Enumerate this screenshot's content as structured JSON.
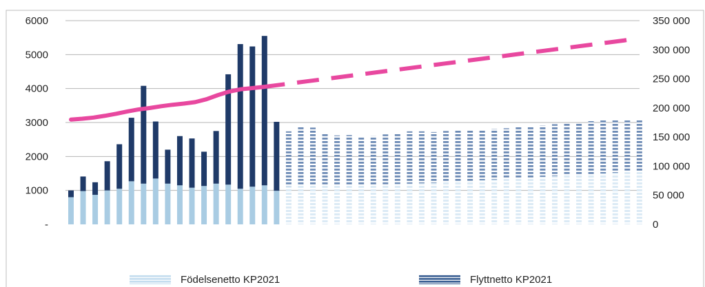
{
  "chart_data": {
    "type": "bar",
    "subtype": "stacked-bar-with-line-dual-axis",
    "title": "",
    "xlabel": "",
    "ylabel": "",
    "y_left": {
      "lim": [
        0,
        6000
      ],
      "ticks": [
        0,
        1000,
        2000,
        3000,
        4000,
        5000,
        6000
      ],
      "tick_labels": [
        "-",
        "1000",
        "2000",
        "3000",
        "4000",
        "5000",
        "6000"
      ]
    },
    "y_right": {
      "lim": [
        0,
        350000
      ],
      "ticks": [
        0,
        50000,
        100000,
        150000,
        200000,
        250000,
        300000,
        350000
      ],
      "tick_labels": [
        "0",
        "50 000",
        "100 000",
        "150 000",
        "200 000",
        "250 000",
        "300 000",
        "350 000"
      ]
    },
    "grid": true,
    "legend_position": "bottom",
    "legend": [
      {
        "label": "Födelsenetto KP2021",
        "color": "#a9cce3"
      },
      {
        "label": "Flyttnetto KP2021",
        "color": "#1f3a68"
      }
    ],
    "historical_count": 18,
    "series": [
      {
        "name": "Födelsenetto KP2021",
        "axis": "left",
        "color": "#a9cce3",
        "values": [
          800,
          980,
          870,
          1000,
          1050,
          1270,
          1200,
          1350,
          1200,
          1150,
          1080,
          1130,
          1200,
          1170,
          1050,
          1110,
          1150,
          990,
          1130,
          1140,
          1150,
          1150,
          1150,
          1150,
          1160,
          1170,
          1180,
          1190,
          1200,
          1210,
          1220,
          1240,
          1260,
          1280,
          1300,
          1320,
          1340,
          1360,
          1380,
          1400,
          1420,
          1440,
          1460,
          1480,
          1500,
          1520,
          1540,
          1560
        ]
      },
      {
        "name": "Flyttnetto KP2021",
        "axis": "left",
        "color": "#1f3a68",
        "values": [
          200,
          430,
          370,
          860,
          1310,
          1870,
          2880,
          1680,
          1000,
          1450,
          1450,
          1010,
          1550,
          3250,
          4260,
          4130,
          4400,
          2030,
          1610,
          1730,
          1700,
          1520,
          1470,
          1480,
          1410,
          1430,
          1470,
          1490,
          1540,
          1530,
          1500,
          1510,
          1500,
          1490,
          1480,
          1490,
          1490,
          1500,
          1490,
          1510,
          1530,
          1520,
          1520,
          1560,
          1560,
          1560,
          1520,
          1510
        ]
      },
      {
        "name": "",
        "axis": "right",
        "color": "#e8489f",
        "values": [
          180000,
          181500,
          183500,
          186500,
          190000,
          194000,
          197500,
          200000,
          203000,
          205500,
          207500,
          210000,
          215000,
          222000,
          228000,
          232000,
          234000,
          236000,
          238500,
          241000,
          243500,
          246000,
          248500,
          251000,
          253500,
          256000,
          258500,
          261000,
          263500,
          266000,
          268500,
          271000,
          273500,
          276000,
          278500,
          281000,
          283500,
          286000,
          288500,
          291000,
          293500,
          296000,
          298500,
          301000,
          303500,
          306000,
          308500,
          311000,
          313500,
          316000,
          319000
        ]
      }
    ]
  }
}
